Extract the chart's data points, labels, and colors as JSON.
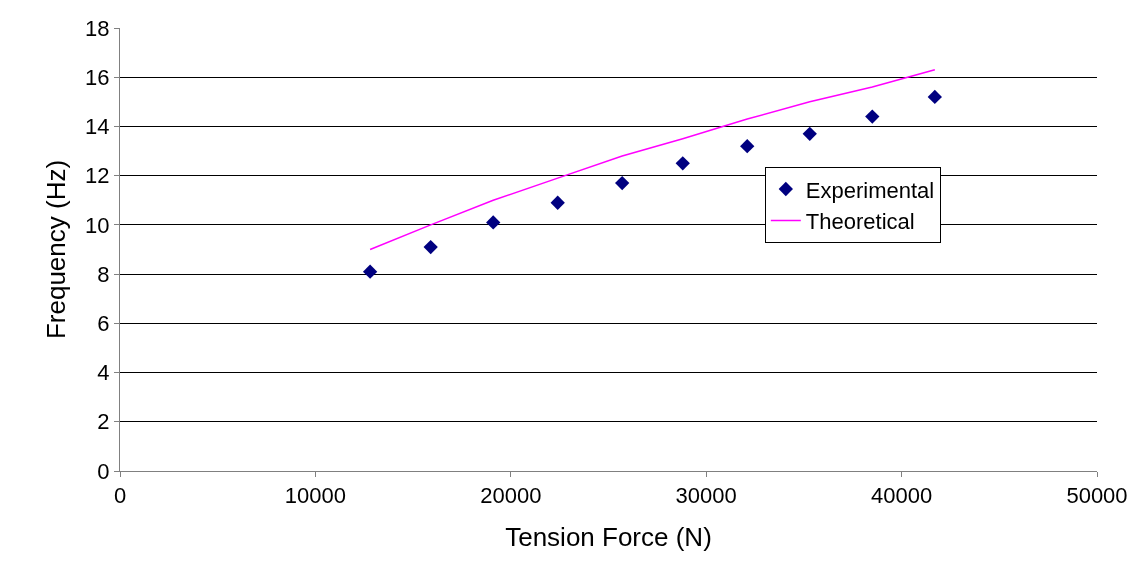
{
  "chart_data": {
    "type": "scatter",
    "xlabel": "Tension Force (N)",
    "ylabel": "Frequency (Hz)",
    "xlim": [
      0,
      50000
    ],
    "xticks": [
      0,
      10000,
      20000,
      30000,
      40000,
      50000
    ],
    "ylim": [
      0,
      18
    ],
    "yticks": [
      0,
      2,
      4,
      6,
      8,
      10,
      12,
      14,
      16,
      18
    ],
    "grid": "y",
    "legend": "right",
    "series": [
      {
        "name": "Experimental",
        "type": "scatter",
        "marker": "diamond",
        "color": "#000080",
        "x": [
          12800,
          15900,
          19100,
          22400,
          25700,
          28800,
          32100,
          35300,
          38500,
          41700
        ],
        "values": [
          8.1,
          9.1,
          10.1,
          10.9,
          11.7,
          12.5,
          13.2,
          13.7,
          14.4,
          15.2
        ]
      },
      {
        "name": "Theoretical",
        "type": "line",
        "marker": "none",
        "line_style": "solid",
        "color": "#ff00ff",
        "x": [
          12800,
          15900,
          19100,
          22400,
          25700,
          28800,
          32100,
          35300,
          38500,
          41700
        ],
        "values": [
          9.0,
          10.0,
          11.0,
          11.9,
          12.8,
          13.5,
          14.3,
          15.0,
          15.6,
          16.3
        ]
      }
    ]
  }
}
